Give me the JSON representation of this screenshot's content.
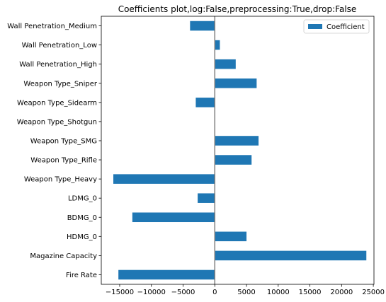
{
  "chart_data": {
    "type": "bar",
    "orientation": "horizontal",
    "title": "Coefficients plot,log:False,preprocessing:True,drop:False",
    "xlabel": "",
    "ylabel": "",
    "categories": [
      "Fire Rate",
      "Magazine Capacity",
      "HDMG_0",
      "BDMG_0",
      "LDMG_0",
      "Weapon Type_Heavy",
      "Weapon Type_Rifle",
      "Weapon Type_SMG",
      "Weapon Type_Shotgun",
      "Weapon Type_Sidearm",
      "Weapon Type_Sniper",
      "Wall Penetration_High",
      "Wall Penetration_Low",
      "Wall Penetration_Medium"
    ],
    "series": [
      {
        "name": "Coefficient",
        "color": "#1f77b4",
        "values": [
          -15200,
          23900,
          5000,
          -13000,
          -2700,
          -16000,
          5800,
          6900,
          0,
          -3000,
          6600,
          3300,
          800,
          -3900
        ]
      }
    ],
    "xlim": [
      -17900,
      25100
    ],
    "xticks": [
      -15000,
      -10000,
      -5000,
      0,
      5000,
      10000,
      15000,
      20000,
      25000
    ],
    "xtick_labels": [
      "−15000",
      "−10000",
      "−5000",
      "0",
      "5000",
      "10000",
      "15000",
      "20000",
      "25000"
    ],
    "zero_line_color": "#808080",
    "grid": false,
    "legend_position": "top-right"
  }
}
